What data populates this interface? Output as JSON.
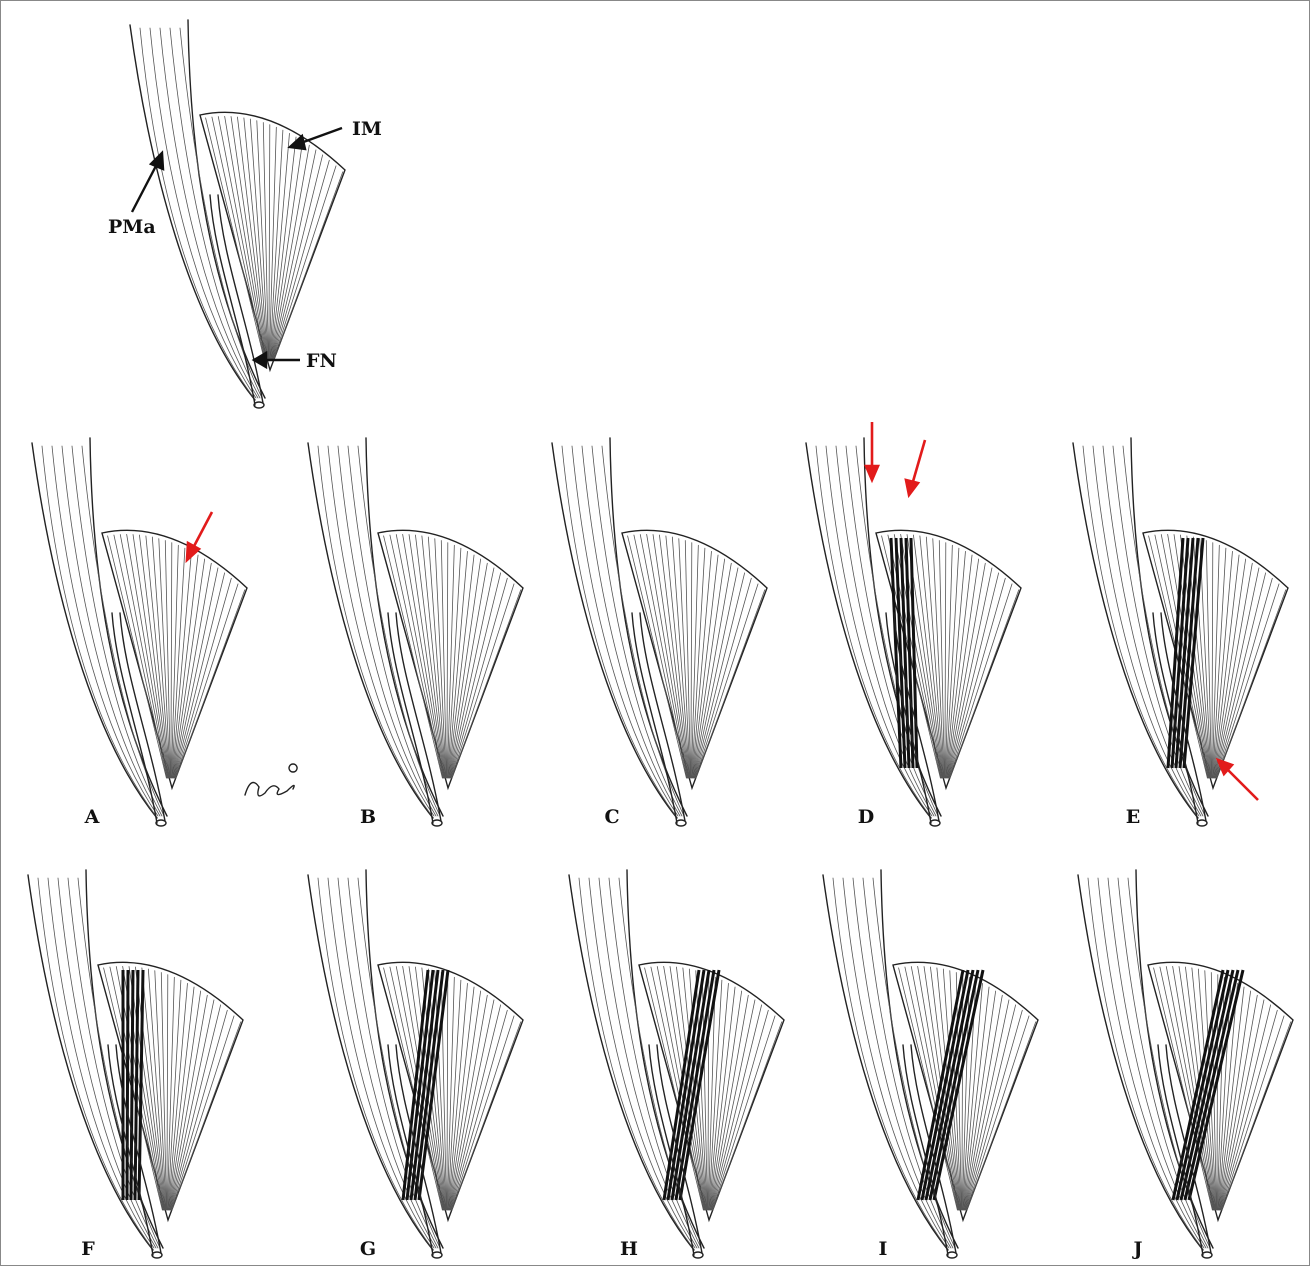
{
  "labels": {
    "pma": "PMa",
    "im": "IM",
    "fn": "FN"
  },
  "panels": [
    "A",
    "B",
    "C",
    "D",
    "E",
    "F",
    "G",
    "H",
    "I",
    "J"
  ]
}
